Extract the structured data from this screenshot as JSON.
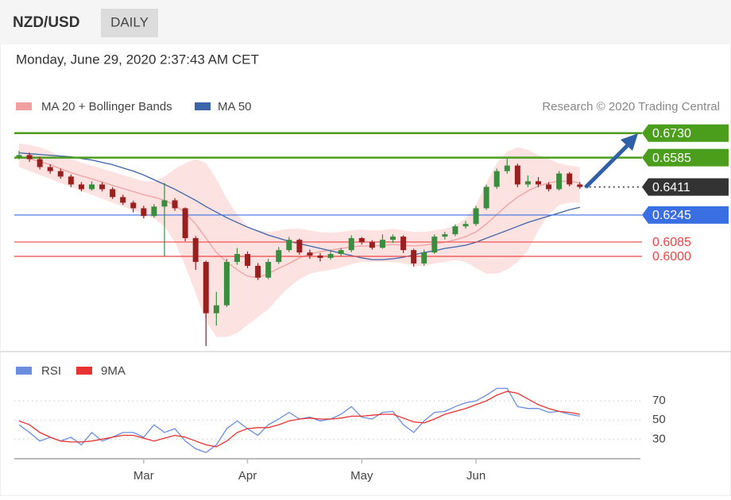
{
  "header": {
    "symbol": "NZD/USD",
    "period": "DAILY",
    "timestamp": "Monday, June 29, 2020 2:37:43 AM CET"
  },
  "chart_data": [
    {
      "type": "candlestick",
      "source": "Research © 2020 Trading Central",
      "categories": [
        null,
        null,
        null,
        null,
        null,
        null,
        null,
        null,
        null,
        null,
        null,
        null,
        "Mar",
        null,
        null,
        null,
        null,
        null,
        null,
        null,
        null,
        null,
        "Apr",
        null,
        null,
        null,
        null,
        null,
        null,
        null,
        null,
        null,
        null,
        "May",
        null,
        null,
        null,
        null,
        null,
        null,
        null,
        null,
        null,
        null,
        "Jun",
        null,
        null,
        null,
        null,
        null,
        null,
        null,
        null,
        null,
        null
      ],
      "open": [
        0.659,
        0.66,
        0.6576,
        0.6529,
        0.6505,
        0.6473,
        0.6426,
        0.6398,
        0.6426,
        0.6398,
        0.6351,
        0.6318,
        0.6285,
        0.6239,
        0.6295,
        0.6332,
        0.6285,
        0.6108,
        0.5967,
        0.5663,
        0.571,
        0.5967,
        0.6014,
        0.5944,
        0.5874,
        0.5967,
        0.6037,
        0.6098,
        0.6023,
        0.6005,
        0.5991,
        0.6014,
        0.6037,
        0.6108,
        0.6084,
        0.6051,
        0.6098,
        0.6117,
        0.6037,
        0.5958,
        0.6023,
        0.6117,
        0.6131,
        0.6178,
        0.6192,
        0.6285,
        0.6412,
        0.6505,
        0.6538,
        0.6426,
        0.6445,
        0.6426,
        0.6398,
        0.6491,
        0.6426
      ],
      "high": [
        0.6625,
        0.6615,
        0.659,
        0.6545,
        0.652,
        0.6485,
        0.644,
        0.6445,
        0.644,
        0.641,
        0.6365,
        0.633,
        0.63,
        0.631,
        0.6435,
        0.6345,
        0.629,
        0.612,
        0.5975,
        0.579,
        0.5985,
        0.605,
        0.603,
        0.596,
        0.5985,
        0.6055,
        0.6115,
        0.6105,
        0.604,
        0.602,
        0.603,
        0.605,
        0.6125,
        0.6115,
        0.6095,
        0.613,
        0.613,
        0.6125,
        0.6045,
        0.604,
        0.613,
        0.6145,
        0.619,
        0.621,
        0.63,
        0.6425,
        0.652,
        0.6585,
        0.655,
        0.648,
        0.647,
        0.644,
        0.6505,
        0.65,
        0.644
      ],
      "low": [
        0.6575,
        0.656,
        0.6515,
        0.649,
        0.646,
        0.641,
        0.6385,
        0.639,
        0.6385,
        0.634,
        0.6305,
        0.626,
        0.6225,
        0.623,
        0.6,
        0.627,
        0.609,
        0.592,
        0.5469,
        0.559,
        0.57,
        0.595,
        0.593,
        0.586,
        0.5865,
        0.5955,
        0.6025,
        0.601,
        0.5985,
        0.597,
        0.598,
        0.6,
        0.6025,
        0.607,
        0.604,
        0.6045,
        0.608,
        0.602,
        0.594,
        0.5945,
        0.6015,
        0.61,
        0.612,
        0.6165,
        0.618,
        0.6275,
        0.64,
        0.649,
        0.641,
        0.641,
        0.641,
        0.6385,
        0.639,
        0.6415,
        0.64
      ],
      "close": [
        0.66,
        0.6576,
        0.6529,
        0.6505,
        0.6473,
        0.6426,
        0.6398,
        0.6426,
        0.6398,
        0.6351,
        0.6318,
        0.6285,
        0.6239,
        0.6295,
        0.6332,
        0.6285,
        0.6108,
        0.5967,
        0.5663,
        0.571,
        0.5967,
        0.6014,
        0.5944,
        0.5874,
        0.5967,
        0.6037,
        0.6098,
        0.6023,
        0.6005,
        0.5991,
        0.6014,
        0.6037,
        0.6108,
        0.6084,
        0.6051,
        0.6098,
        0.6117,
        0.6037,
        0.5958,
        0.6023,
        0.6117,
        0.6131,
        0.6178,
        0.6192,
        0.6285,
        0.6412,
        0.6505,
        0.6538,
        0.6426,
        0.6445,
        0.6426,
        0.6398,
        0.6491,
        0.6426,
        0.6411
      ],
      "up_color": "#3a8d3f",
      "down_color": "#9a1f1f",
      "series": [
        {
          "name": "MA 20 + Bollinger Bands",
          "color": "#f2a0a0",
          "band_color": "#fde2e2",
          "values": [
            0.6594,
            0.658,
            0.6562,
            0.6543,
            0.6519,
            0.6496,
            0.6477,
            0.6459,
            0.644,
            0.6421,
            0.6402,
            0.6384,
            0.6365,
            0.6351,
            0.6332,
            0.6304,
            0.6257,
            0.6192,
            0.6108,
            0.6023,
            0.5967,
            0.592,
            0.5883,
            0.5874,
            0.5897,
            0.593,
            0.5958,
            0.5991,
            0.6014,
            0.6028,
            0.6037,
            0.6047,
            0.6056,
            0.6061,
            0.6061,
            0.6066,
            0.607,
            0.6066,
            0.6061,
            0.6066,
            0.6075,
            0.6084,
            0.6098,
            0.6117,
            0.6145,
            0.6192,
            0.6248,
            0.6304,
            0.6351,
            0.6388,
            0.6416,
            0.6435,
            0.6445,
            0.6445,
            0.6435
          ],
          "upper": [
            0.6669,
            0.666,
            0.6646,
            0.6622,
            0.6594,
            0.6576,
            0.6557,
            0.6538,
            0.6519,
            0.6501,
            0.6482,
            0.6463,
            0.6445,
            0.6445,
            0.6473,
            0.6519,
            0.6552,
            0.6576,
            0.6552,
            0.6459,
            0.6342,
            0.6248,
            0.6178,
            0.6154,
            0.6145,
            0.6154,
            0.6164,
            0.6164,
            0.6154,
            0.6145,
            0.614,
            0.6145,
            0.6154,
            0.6159,
            0.6154,
            0.6154,
            0.6164,
            0.6154,
            0.6145,
            0.6145,
            0.6154,
            0.6164,
            0.6183,
            0.6225,
            0.6304,
            0.6435,
            0.6552,
            0.6622,
            0.6646,
            0.6632,
            0.6599,
            0.6576,
            0.6552,
            0.6538,
            0.6529
          ],
          "lower": [
            0.6529,
            0.6505,
            0.6482,
            0.6459,
            0.6435,
            0.6412,
            0.6388,
            0.6365,
            0.6342,
            0.6318,
            0.6295,
            0.6271,
            0.6248,
            0.6225,
            0.6178,
            0.6084,
            0.5944,
            0.578,
            0.5616,
            0.5523,
            0.5523,
            0.5546,
            0.5593,
            0.564,
            0.5686,
            0.5757,
            0.5817,
            0.5864,
            0.5897,
            0.5911,
            0.592,
            0.5934,
            0.5953,
            0.5967,
            0.5967,
            0.5967,
            0.5967,
            0.5958,
            0.5944,
            0.5944,
            0.5958,
            0.5967,
            0.5977,
            0.5967,
            0.593,
            0.5897,
            0.5897,
            0.592,
            0.5967,
            0.6037,
            0.6154,
            0.6248,
            0.6304,
            0.6318,
            0.6318
          ]
        },
        {
          "name": "MA 50",
          "color": "#3d64a8",
          "values": [
            0.6613,
            0.6608,
            0.6604,
            0.6599,
            0.6594,
            0.659,
            0.658,
            0.6571,
            0.6557,
            0.6543,
            0.6524,
            0.6505,
            0.6482,
            0.6454,
            0.6426,
            0.6398,
            0.6365,
            0.6332,
            0.6295,
            0.6262,
            0.6229,
            0.6201,
            0.6173,
            0.615,
            0.6126,
            0.6108,
            0.6089,
            0.6075,
            0.6061,
            0.6047,
            0.6033,
            0.6019,
            0.6005,
            0.5991,
            0.5981,
            0.5981,
            0.5986,
            0.5995,
            0.6009,
            0.6023,
            0.6033,
            0.6047,
            0.6056,
            0.6066,
            0.6084,
            0.6108,
            0.6131,
            0.6154,
            0.6178,
            0.6201,
            0.622,
            0.6239,
            0.6257,
            0.6276,
            0.629
          ]
        }
      ],
      "ylim": [
        0.545,
        0.679
      ],
      "levels": [
        {
          "value": 0.673,
          "label": "0.6730",
          "color": "#4a9e1c",
          "style": "tag",
          "line": "solid"
        },
        {
          "value": 0.6585,
          "label": "0.6585",
          "color": "#4a9e1c",
          "style": "tag",
          "line": "solid"
        },
        {
          "value": 0.6411,
          "label": "0.6411",
          "color": "#333333",
          "style": "tag",
          "line": "dotted"
        },
        {
          "value": 0.6245,
          "label": "0.6245",
          "color": "#3a6fe3",
          "style": "tag",
          "line": "solid"
        },
        {
          "value": 0.6085,
          "label": "0.6085",
          "color": "#ee4444",
          "style": "text",
          "line": "solid"
        },
        {
          "value": 0.6,
          "label": "0.6000",
          "color": "#ee4444",
          "style": "text",
          "line": "solid"
        }
      ]
    },
    {
      "type": "line",
      "series": [
        {
          "name": "RSI",
          "color": "#6a8de0",
          "values": [
            45,
            37,
            28,
            32,
            28,
            32,
            24,
            37,
            28,
            32,
            37,
            37,
            32,
            45,
            37,
            41,
            28,
            20,
            16,
            24,
            41,
            49,
            41,
            34,
            45,
            51,
            58,
            51,
            53,
            49,
            51,
            56,
            64,
            53,
            51,
            58,
            59,
            45,
            37,
            49,
            58,
            59,
            64,
            68,
            70,
            76,
            83,
            83,
            64,
            62,
            62,
            58,
            59,
            56,
            54
          ]
        },
        {
          "name": "9MA",
          "color": "#e83232",
          "values": [
            49,
            45,
            37,
            32,
            28,
            27,
            27,
            28,
            30,
            32,
            34,
            34,
            31,
            28,
            31,
            34,
            32,
            28,
            24,
            22,
            28,
            37,
            41,
            42,
            42,
            45,
            49,
            51,
            52,
            51,
            51,
            52,
            54,
            54,
            55,
            56,
            56,
            52,
            48,
            47,
            51,
            56,
            59,
            62,
            66,
            70,
            76,
            80,
            78,
            72,
            66,
            62,
            59,
            58,
            56
          ]
        }
      ],
      "ylim": [
        12,
        90
      ],
      "yticks": [
        30,
        50,
        70
      ],
      "grid": true
    }
  ]
}
